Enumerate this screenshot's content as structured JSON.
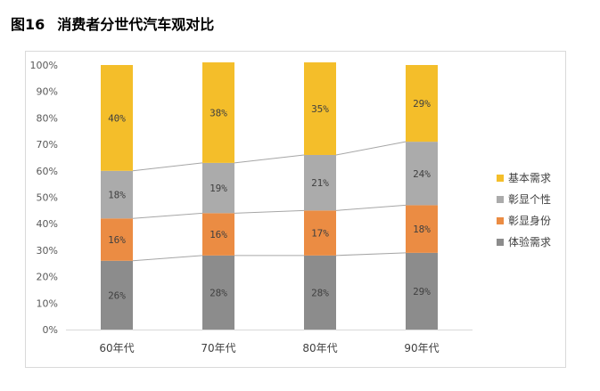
{
  "figure": {
    "number": "图16",
    "title": "消费者分世代汽车观对比"
  },
  "chart_data": {
    "type": "bar",
    "stacked": true,
    "title": "",
    "xlabel": "",
    "ylabel": "",
    "ylim": [
      0,
      100
    ],
    "y_ticks": [
      "0%",
      "10%",
      "20%",
      "30%",
      "40%",
      "50%",
      "60%",
      "70%",
      "80%",
      "90%",
      "100%"
    ],
    "categories": [
      "60年代",
      "70年代",
      "80年代",
      "90年代"
    ],
    "series": [
      {
        "name": "体验需求",
        "color": "#8c8c8c",
        "values": [
          26,
          28,
          28,
          29
        ],
        "labels": [
          "26%",
          "28%",
          "28%",
          "29%"
        ]
      },
      {
        "name": "彰显身份",
        "color": "#eb8c43",
        "values": [
          16,
          16,
          17,
          18
        ],
        "labels": [
          "16%",
          "16%",
          "17%",
          "18%"
        ]
      },
      {
        "name": "彰显个性",
        "color": "#ababab",
        "values": [
          18,
          19,
          21,
          24
        ],
        "labels": [
          "18%",
          "19%",
          "21%",
          "24%"
        ]
      },
      {
        "name": "基本需求",
        "color": "#f4be2a",
        "values": [
          40,
          38,
          35,
          29
        ],
        "labels": [
          "40%",
          "38%",
          "35%",
          "29%"
        ]
      }
    ],
    "series_lines": true,
    "legend_position": "right",
    "grid": false
  }
}
